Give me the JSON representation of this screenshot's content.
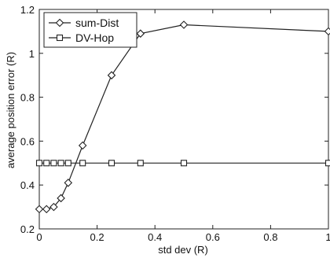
{
  "chart_data": {
    "type": "line",
    "xlabel": "std dev (R)",
    "ylabel": "average position error (R)",
    "xlim": [
      0,
      1
    ],
    "ylim": [
      0.2,
      1.2
    ],
    "xticks": [
      "0",
      "0.2",
      "0.4",
      "0.6",
      "0.8",
      "1"
    ],
    "yticks": [
      "0.2",
      "0.4",
      "0.6",
      "0.8",
      "1",
      "1.2"
    ],
    "grid": false,
    "legend_position": "top-left",
    "series": [
      {
        "name": "sum-Dist",
        "marker": "diamond",
        "color": "#222222",
        "x": [
          0,
          0.025,
          0.05,
          0.075,
          0.1,
          0.15,
          0.25,
          0.35,
          0.5,
          1.0
        ],
        "y": [
          0.29,
          0.29,
          0.3,
          0.34,
          0.41,
          0.58,
          0.9,
          1.09,
          1.13,
          1.1
        ]
      },
      {
        "name": "DV-Hop",
        "marker": "square",
        "color": "#222222",
        "x": [
          0,
          0.025,
          0.05,
          0.075,
          0.1,
          0.15,
          0.25,
          0.35,
          0.5,
          1.0
        ],
        "y": [
          0.5,
          0.5,
          0.5,
          0.5,
          0.5,
          0.5,
          0.5,
          0.5,
          0.5,
          0.5
        ]
      }
    ]
  }
}
